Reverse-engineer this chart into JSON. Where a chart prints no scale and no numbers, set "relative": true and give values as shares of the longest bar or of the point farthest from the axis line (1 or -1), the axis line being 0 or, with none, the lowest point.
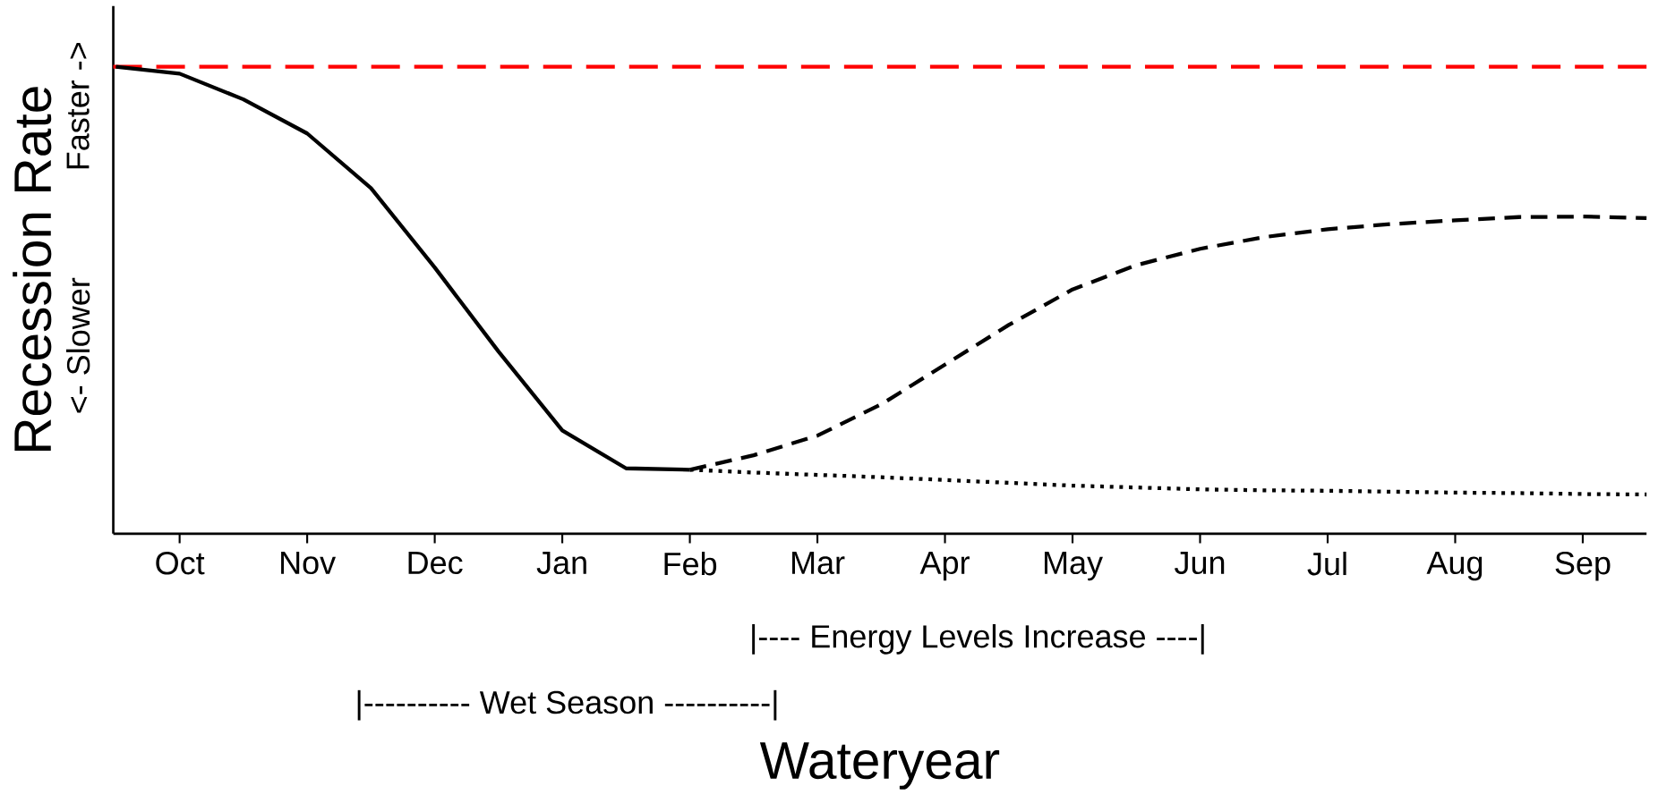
{
  "chart_data": {
    "type": "line",
    "relative": true,
    "xlabel": "Wateryear",
    "ylabel": "Recession Rate",
    "categories": [
      null,
      "Oct",
      null,
      "Nov",
      null,
      "Dec",
      null,
      "Jan",
      null,
      "Feb",
      null,
      "Mar",
      null,
      "Apr",
      null,
      "May",
      null,
      "Jun",
      null,
      "Jul",
      null,
      "Aug",
      null,
      "Sep",
      null
    ],
    "marker": "none",
    "series": [
      {
        "color": "#000000",
        "line_style": "solid",
        "values": [
          1.0,
          0.985,
          0.93,
          0.857,
          0.74,
          0.57,
          0.39,
          0.221,
          0.14,
          0.137,
          null,
          null,
          null,
          null,
          null,
          null,
          null,
          null,
          null,
          null,
          null,
          null,
          null,
          null,
          null
        ]
      },
      {
        "color": "#000000",
        "line_style": "dashed",
        "values": [
          null,
          null,
          null,
          null,
          null,
          null,
          null,
          null,
          null,
          0.137,
          0.168,
          0.21,
          0.277,
          0.362,
          0.447,
          0.523,
          0.575,
          0.61,
          0.635,
          0.652,
          0.663,
          0.671,
          0.678,
          0.679,
          0.676
        ]
      },
      {
        "color": "#000000",
        "line_style": "dotted",
        "values": [
          null,
          null,
          null,
          null,
          null,
          null,
          null,
          null,
          null,
          0.137,
          0.131,
          0.126,
          0.121,
          0.115,
          0.109,
          0.103,
          0.099,
          0.095,
          0.093,
          0.092,
          0.09,
          0.088,
          0.087,
          0.085,
          0.084
        ]
      }
    ],
    "ref_lines": [
      {
        "axis": "y",
        "value": 1,
        "color": "#ff0000",
        "line_style": "dashed"
      }
    ],
    "annotations": [
      "|---- Energy Levels Increase ----|",
      "|---------- Wet Season ----------|",
      "<- Slower",
      "Faster ->"
    ]
  }
}
